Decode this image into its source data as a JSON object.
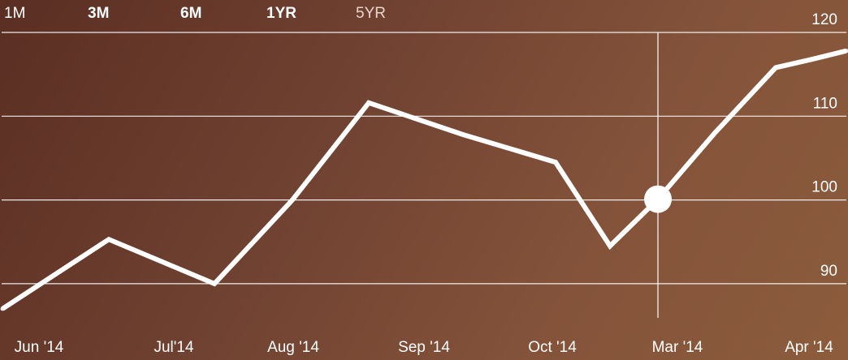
{
  "range_tabs": [
    {
      "label": "1M",
      "weight": "normal"
    },
    {
      "label": "3M",
      "weight": "bold"
    },
    {
      "label": "6M",
      "weight": "bold"
    },
    {
      "label": "1YR",
      "weight": "bold"
    },
    {
      "label": "5YR",
      "weight": "dim"
    }
  ],
  "colors": {
    "background_start": "#5a2e22",
    "background_end": "#8c5c3c",
    "line": "#ffffff",
    "grid": "#ffffff"
  },
  "chart_data": {
    "type": "line",
    "title": "",
    "xlabel": "",
    "ylabel": "",
    "ylim": [
      86.7,
      120
    ],
    "yticks": [
      120,
      110,
      100,
      90
    ],
    "grid": true,
    "x": [
      "Jun '14",
      "",
      "Jul'14",
      "Aug '14",
      "",
      "Sep '14",
      "",
      "Oct '14",
      "",
      "Mar '14",
      "",
      "Apr '14",
      ""
    ],
    "series": [
      {
        "values": [
          87,
          95.3,
          90,
          100,
          111.6,
          107.8,
          104.5,
          94.5,
          100.1,
          108,
          115.8,
          116.8,
          117.8
        ]
      }
    ],
    "highlight": {
      "index": 8,
      "value": 100.1,
      "label": "Mar '14"
    },
    "x_labels": [
      {
        "text": "Jun '14",
        "pos": 0
      },
      {
        "text": "Jul'14",
        "pos": 2
      },
      {
        "text": "Aug '14",
        "pos": 3
      },
      {
        "text": "Sep '14",
        "pos": 5
      },
      {
        "text": "Oct '14",
        "pos": 7
      },
      {
        "text": "Mar '14",
        "pos": 9
      },
      {
        "text": "Apr '14",
        "pos": 11
      }
    ]
  }
}
